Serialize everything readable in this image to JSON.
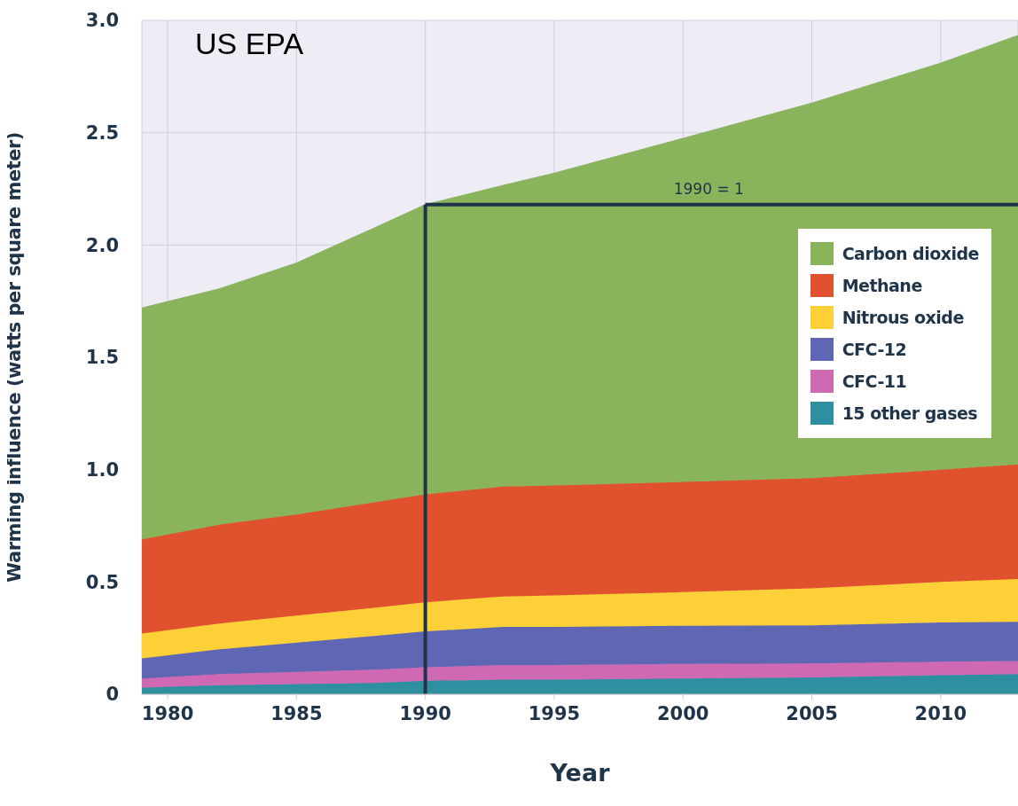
{
  "chart_data": {
    "type": "area",
    "stacked": true,
    "xlabel": "Year",
    "ylabel": "Warming influence (watts per square meter)",
    "annotations": [
      "US EPA",
      {
        "text": "1990 = 1",
        "x": 2001,
        "y": 2.18
      }
    ],
    "x": [
      1979,
      1982,
      1985,
      1988,
      1990,
      1993,
      1995,
      2000,
      2005,
      2010,
      2013
    ],
    "series": [
      {
        "name": "15 other gases",
        "color": "#2d8fa0",
        "values": [
          0.03,
          0.04,
          0.045,
          0.05,
          0.06,
          0.065,
          0.065,
          0.07,
          0.075,
          0.085,
          0.09
        ]
      },
      {
        "name": "CFC-11",
        "color": "#d069b3",
        "values": [
          0.04,
          0.05,
          0.055,
          0.06,
          0.06,
          0.065,
          0.065,
          0.065,
          0.062,
          0.06,
          0.058
        ]
      },
      {
        "name": "CFC-12",
        "color": "#5f66b3",
        "values": [
          0.09,
          0.11,
          0.13,
          0.15,
          0.16,
          0.17,
          0.17,
          0.17,
          0.17,
          0.175,
          0.175
        ]
      },
      {
        "name": "Nitrous oxide",
        "color": "#fcd036",
        "values": [
          0.11,
          0.115,
          0.12,
          0.125,
          0.13,
          0.135,
          0.14,
          0.15,
          0.165,
          0.18,
          0.19
        ]
      },
      {
        "name": "Methane",
        "color": "#e0522d",
        "values": [
          0.42,
          0.44,
          0.45,
          0.47,
          0.48,
          0.49,
          0.49,
          0.49,
          0.49,
          0.5,
          0.51
        ]
      },
      {
        "name": "Carbon dioxide",
        "color": "#8ab45c",
        "values": [
          1.03,
          1.05,
          1.12,
          1.22,
          1.29,
          1.34,
          1.39,
          1.53,
          1.67,
          1.81,
          1.91
        ]
      }
    ],
    "xlim": [
      1979,
      2013
    ],
    "xticks": [
      1980,
      1985,
      1990,
      1995,
      2000,
      2005,
      2010
    ],
    "ylim": [
      0,
      3
    ],
    "yticks": [
      0,
      0.5,
      {
        "value": 1,
        "label": "1.0"
      },
      1.5,
      {
        "value": 2,
        "label": "2.0"
      },
      2.5,
      {
        "value": 3,
        "label": "3.0"
      }
    ],
    "ref_lines": [
      {
        "axis": "x",
        "value": 1990,
        "color": "#1f3349"
      },
      {
        "axis": "y",
        "value": 2.18,
        "color": "#1f3349"
      }
    ],
    "grid": true,
    "legend": "right"
  }
}
